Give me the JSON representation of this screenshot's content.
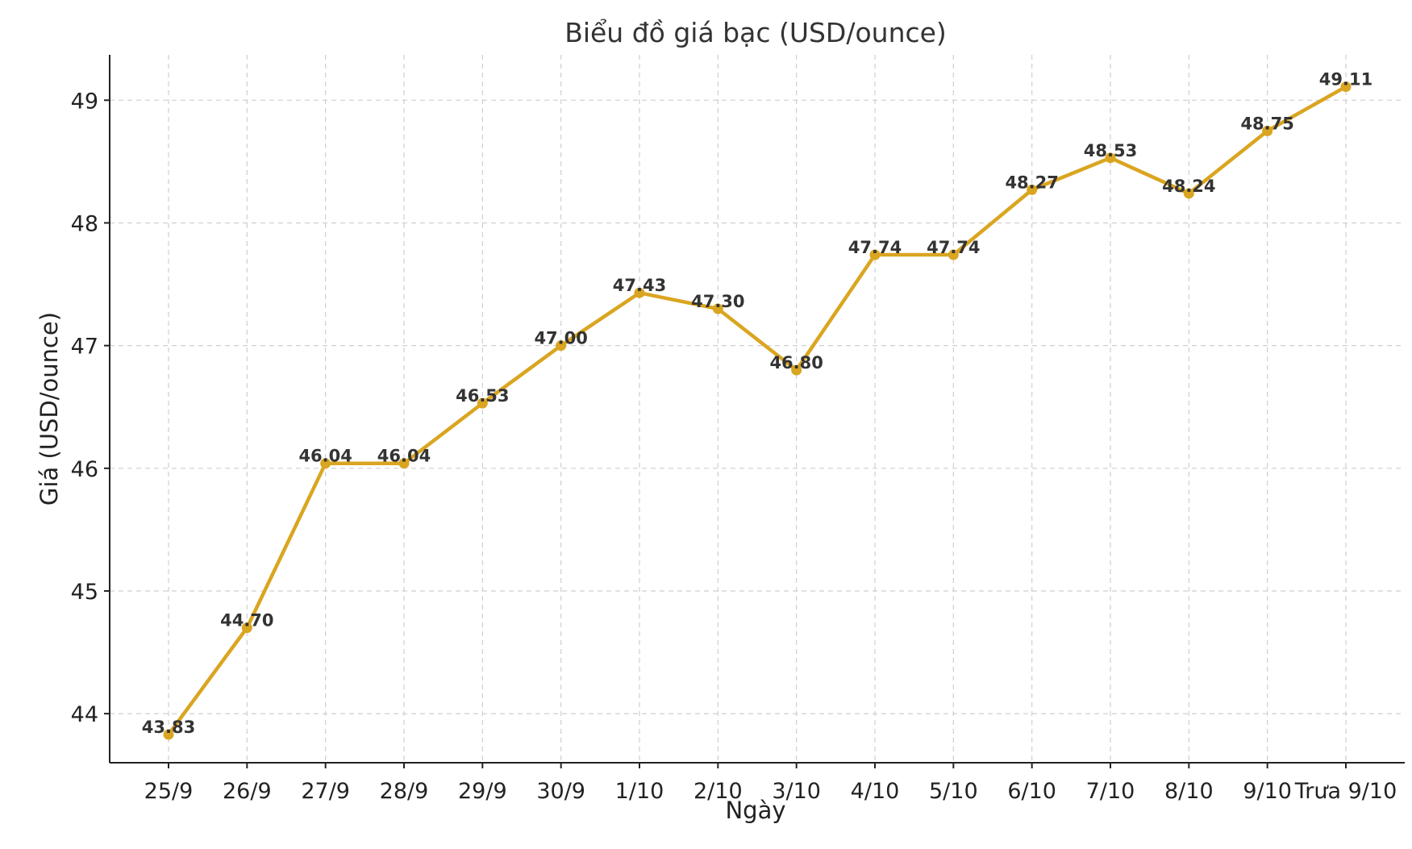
{
  "chart_data": {
    "type": "line",
    "title": "Biểu đồ giá bạc (USD/ounce)",
    "xlabel": "Ngày",
    "ylabel": "Giá (USD/ounce)",
    "categories": [
      "25/9",
      "26/9",
      "27/9",
      "28/9",
      "29/9",
      "30/9",
      "1/10",
      "2/10",
      "3/10",
      "4/10",
      "5/10",
      "6/10",
      "7/10",
      "8/10",
      "9/10",
      "Trưa 9/10"
    ],
    "series": [
      {
        "values": [
          43.83,
          44.7,
          46.04,
          46.04,
          46.53,
          47.0,
          47.43,
          47.3,
          46.8,
          47.74,
          47.74,
          48.27,
          48.53,
          48.24,
          48.75,
          49.11
        ],
        "labels": [
          "43.83",
          "44.70",
          "46.04",
          "46.04",
          "46.53",
          "47.00",
          "47.43",
          "47.30",
          "46.80",
          "47.74",
          "47.74",
          "48.27",
          "48.53",
          "48.24",
          "48.75",
          "49.11"
        ],
        "color": "#DAA520"
      }
    ],
    "yticks": [
      "44",
      "45",
      "46",
      "47",
      "48",
      "49"
    ],
    "ylim": [
      43.6,
      49.37
    ],
    "grid": true,
    "markers": true,
    "legend": false
  }
}
